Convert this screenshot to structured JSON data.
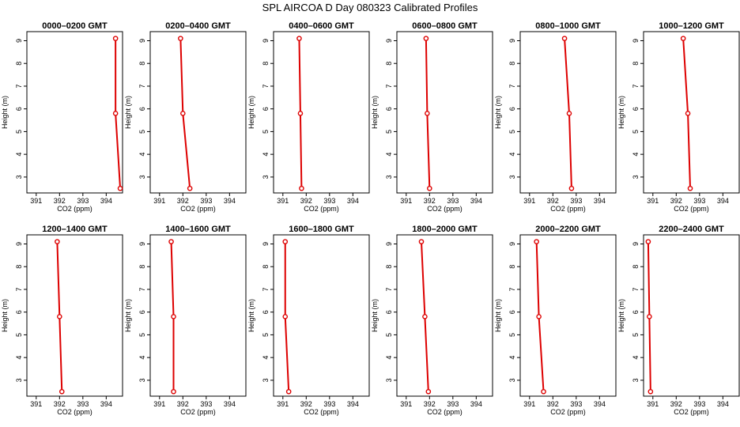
{
  "title": "SPL AIRCOA D  Day 080323  Calibrated Profiles",
  "colors": {
    "series": "#dd0000",
    "axis": "#000000",
    "background": "#ffffff"
  },
  "chart_data": [
    {
      "type": "line",
      "title": "0000–0200 GMT",
      "xlabel": "CO2 (ppm)",
      "ylabel": "Height (m)",
      "xlim": [
        390.6,
        394.7
      ],
      "ylim": [
        2.3,
        9.4
      ],
      "xticks": [
        391,
        392,
        393,
        394
      ],
      "yticks": [
        3,
        4,
        5,
        6,
        7,
        8,
        9
      ],
      "grid": false,
      "x": [
        394.4,
        394.4,
        394.6
      ],
      "y": [
        9.1,
        5.8,
        2.5
      ]
    },
    {
      "type": "line",
      "title": "0200–0400 GMT",
      "xlabel": "CO2 (ppm)",
      "ylabel": "Height (m)",
      "xlim": [
        390.6,
        394.7
      ],
      "ylim": [
        2.3,
        9.4
      ],
      "xticks": [
        391,
        392,
        393,
        394
      ],
      "yticks": [
        3,
        4,
        5,
        6,
        7,
        8,
        9
      ],
      "grid": false,
      "x": [
        391.9,
        392.0,
        392.3
      ],
      "y": [
        9.1,
        5.8,
        2.5
      ]
    },
    {
      "type": "line",
      "title": "0400–0600 GMT",
      "xlabel": "CO2 (ppm)",
      "ylabel": "Height (m)",
      "xlim": [
        390.6,
        394.7
      ],
      "ylim": [
        2.3,
        9.4
      ],
      "xticks": [
        391,
        392,
        393,
        394
      ],
      "yticks": [
        3,
        4,
        5,
        6,
        7,
        8,
        9
      ],
      "grid": false,
      "x": [
        391.7,
        391.75,
        391.8
      ],
      "y": [
        9.1,
        5.8,
        2.5
      ]
    },
    {
      "type": "line",
      "title": "0600–0800 GMT",
      "xlabel": "CO2 (ppm)",
      "ylabel": "Height (m)",
      "xlim": [
        390.6,
        394.7
      ],
      "ylim": [
        2.3,
        9.4
      ],
      "xticks": [
        391,
        392,
        393,
        394
      ],
      "yticks": [
        3,
        4,
        5,
        6,
        7,
        8,
        9
      ],
      "grid": false,
      "x": [
        391.85,
        391.9,
        392.0
      ],
      "y": [
        9.1,
        5.8,
        2.5
      ]
    },
    {
      "type": "line",
      "title": "0800–1000 GMT",
      "xlabel": "CO2 (ppm)",
      "ylabel": "Height (m)",
      "xlim": [
        390.6,
        394.7
      ],
      "ylim": [
        2.3,
        9.4
      ],
      "xticks": [
        391,
        392,
        393,
        394
      ],
      "yticks": [
        3,
        4,
        5,
        6,
        7,
        8,
        9
      ],
      "grid": false,
      "x": [
        392.5,
        392.7,
        392.8
      ],
      "y": [
        9.1,
        5.8,
        2.5
      ]
    },
    {
      "type": "line",
      "title": "1000–1200 GMT",
      "xlabel": "CO2 (ppm)",
      "ylabel": "Height (m)",
      "xlim": [
        390.6,
        394.7
      ],
      "ylim": [
        2.3,
        9.4
      ],
      "xticks": [
        391,
        392,
        393,
        394
      ],
      "yticks": [
        3,
        4,
        5,
        6,
        7,
        8,
        9
      ],
      "grid": false,
      "x": [
        392.3,
        392.5,
        392.6
      ],
      "y": [
        9.1,
        5.8,
        2.5
      ]
    },
    {
      "type": "line",
      "title": "1200–1400 GMT",
      "xlabel": "CO2 (ppm)",
      "ylabel": "Height (m)",
      "xlim": [
        390.6,
        394.7
      ],
      "ylim": [
        2.3,
        9.4
      ],
      "xticks": [
        391,
        392,
        393,
        394
      ],
      "yticks": [
        3,
        4,
        5,
        6,
        7,
        8,
        9
      ],
      "grid": false,
      "x": [
        391.9,
        392.0,
        392.1
      ],
      "y": [
        9.1,
        5.8,
        2.5
      ]
    },
    {
      "type": "line",
      "title": "1400–1600 GMT",
      "xlabel": "CO2 (ppm)",
      "ylabel": "Height (m)",
      "xlim": [
        390.6,
        394.7
      ],
      "ylim": [
        2.3,
        9.4
      ],
      "xticks": [
        391,
        392,
        393,
        394
      ],
      "yticks": [
        3,
        4,
        5,
        6,
        7,
        8,
        9
      ],
      "grid": false,
      "x": [
        391.5,
        391.6,
        391.6
      ],
      "y": [
        9.1,
        5.8,
        2.5
      ]
    },
    {
      "type": "line",
      "title": "1600–1800 GMT",
      "xlabel": "CO2 (ppm)",
      "ylabel": "Height (m)",
      "xlim": [
        390.6,
        394.7
      ],
      "ylim": [
        2.3,
        9.4
      ],
      "xticks": [
        391,
        392,
        393,
        394
      ],
      "yticks": [
        3,
        4,
        5,
        6,
        7,
        8,
        9
      ],
      "grid": false,
      "x": [
        391.1,
        391.1,
        391.25
      ],
      "y": [
        9.1,
        5.8,
        2.5
      ]
    },
    {
      "type": "line",
      "title": "1800–2000 GMT",
      "xlabel": "CO2 (ppm)",
      "ylabel": "Height (m)",
      "xlim": [
        390.6,
        394.7
      ],
      "ylim": [
        2.3,
        9.4
      ],
      "xticks": [
        391,
        392,
        393,
        394
      ],
      "yticks": [
        3,
        4,
        5,
        6,
        7,
        8,
        9
      ],
      "grid": false,
      "x": [
        391.65,
        391.8,
        391.95
      ],
      "y": [
        9.1,
        5.8,
        2.5
      ]
    },
    {
      "type": "line",
      "title": "2000–2200 GMT",
      "xlabel": "CO2 (ppm)",
      "ylabel": "Height (m)",
      "xlim": [
        390.6,
        394.7
      ],
      "ylim": [
        2.3,
        9.4
      ],
      "xticks": [
        391,
        392,
        393,
        394
      ],
      "yticks": [
        3,
        4,
        5,
        6,
        7,
        8,
        9
      ],
      "grid": false,
      "x": [
        391.3,
        391.4,
        391.6
      ],
      "y": [
        9.1,
        5.8,
        2.5
      ]
    },
    {
      "type": "line",
      "title": "2200–2400 GMT",
      "xlabel": "CO2 (ppm)",
      "ylabel": "Height (m)",
      "xlim": [
        390.6,
        394.7
      ],
      "ylim": [
        2.3,
        9.4
      ],
      "xticks": [
        391,
        392,
        393,
        394
      ],
      "yticks": [
        3,
        4,
        5,
        6,
        7,
        8,
        9
      ],
      "grid": false,
      "x": [
        390.8,
        390.85,
        390.9
      ],
      "y": [
        9.1,
        5.8,
        2.5
      ]
    }
  ]
}
